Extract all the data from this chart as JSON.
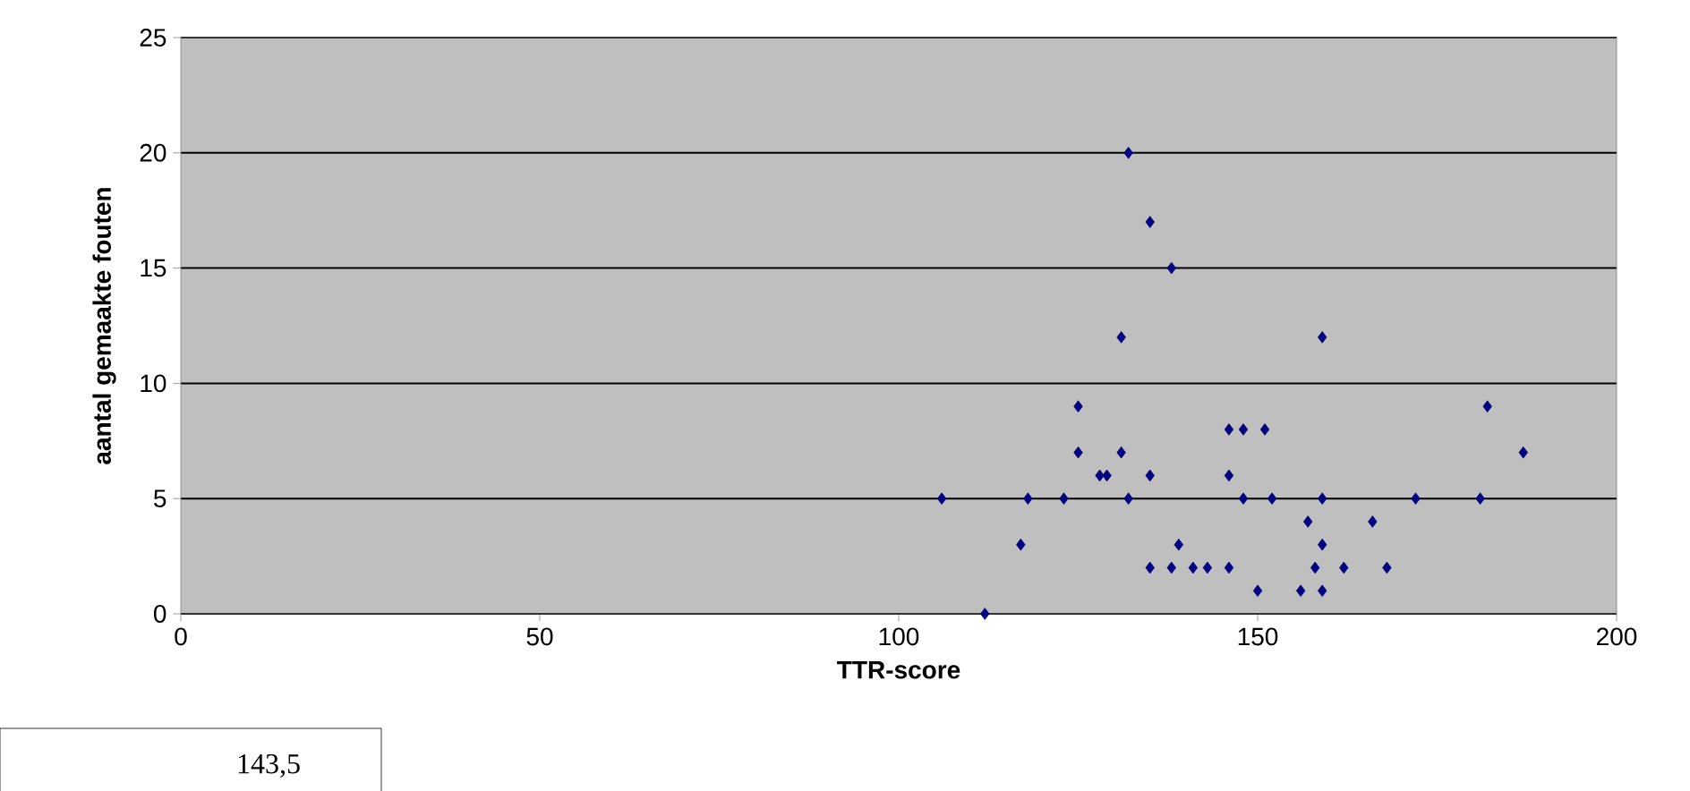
{
  "chart_data": {
    "type": "scatter",
    "xlabel": "TTR-score",
    "ylabel": "aantal gemaakte fouten",
    "x": [
      106,
      112,
      117,
      118,
      123,
      125,
      125,
      128,
      129,
      131,
      131,
      132,
      132,
      135,
      135,
      135,
      138,
      138,
      139,
      141,
      143,
      146,
      146,
      146,
      148,
      148,
      150,
      151,
      152,
      156,
      157,
      158,
      159,
      159,
      159,
      159,
      162,
      166,
      168,
      172,
      181,
      182,
      187
    ],
    "series": [
      {
        "color": "#000080",
        "values": [
          5,
          0,
          3,
          5,
          5,
          9,
          7,
          6,
          6,
          12,
          7,
          20,
          5,
          17,
          6,
          2,
          15,
          2,
          3,
          2,
          2,
          2,
          8,
          6,
          8,
          5,
          1,
          8,
          5,
          1,
          4,
          2,
          12,
          5,
          3,
          1,
          2,
          4,
          2,
          5,
          5,
          9,
          7
        ]
      }
    ],
    "xlim": [
      0,
      200
    ],
    "xticks": [
      0,
      50,
      100,
      150,
      200
    ],
    "ylim": [
      0,
      25
    ],
    "yticks": [
      0,
      5,
      10,
      15,
      20,
      25
    ],
    "grid": "y",
    "marker": "diamond",
    "annotations": [
      "143,5"
    ]
  }
}
